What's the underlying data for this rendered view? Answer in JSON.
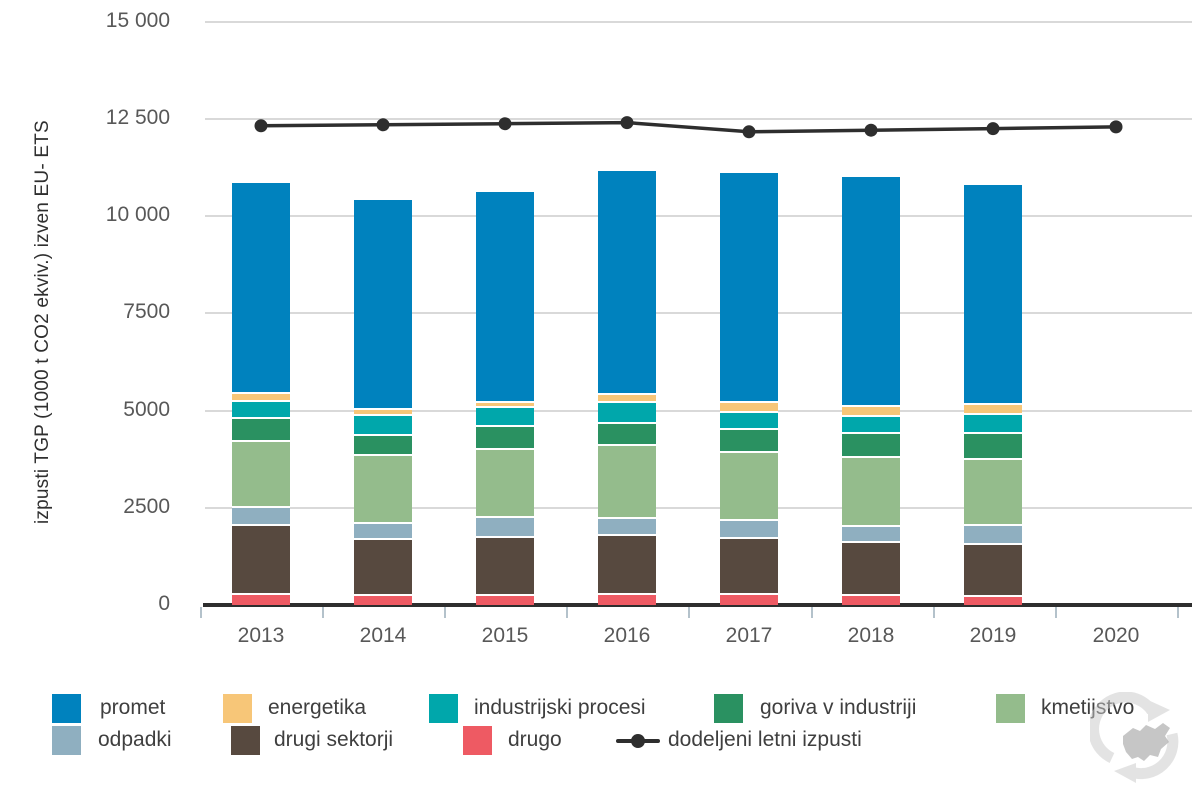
{
  "chart_data": {
    "type": "bar",
    "subtype": "stacked-bars-with-line-overlay",
    "title": "",
    "ylabel": "izpusti TGP (1000 t CO2 ekviv.) izven EU- ETS",
    "xlabel": "",
    "ylim": [
      0,
      15000
    ],
    "grid": "horizontal",
    "ytick_values": [
      15000,
      12500,
      10000,
      7500,
      5000,
      2500,
      0
    ],
    "ytick_labels": [
      "15 000",
      "12 500",
      "10 000",
      "7500",
      "5000",
      "2500",
      "0"
    ],
    "categories": [
      "2013",
      "2014",
      "2015",
      "2016",
      "2017",
      "2018",
      "2019",
      "2020"
    ],
    "stack_note": "series listed bottom-to-top as stacked; 2020 has no bar, only the line point",
    "series": [
      {
        "name": "drugo",
        "color": "#ee5a63",
        "values": [
          315,
          295,
          280,
          320,
          320,
          295,
          255,
          null
        ]
      },
      {
        "name": "drugi sektorji",
        "color": "#57493f",
        "values": [
          1770,
          1420,
          1505,
          1505,
          1440,
          1345,
          1350,
          null
        ]
      },
      {
        "name": "odpadki",
        "color": "#8fafc0",
        "values": [
          455,
          430,
          495,
          430,
          455,
          425,
          480,
          null
        ]
      },
      {
        "name": "kmetijstvo",
        "color": "#94bc8c",
        "values": [
          1700,
          1740,
          1765,
          1875,
          1750,
          1755,
          1690,
          null
        ]
      },
      {
        "name": "goriva v industriji",
        "color": "#2a9161",
        "values": [
          585,
          510,
          595,
          580,
          575,
          640,
          665,
          null
        ]
      },
      {
        "name": "industrijski procesi",
        "color": "#00a7ab",
        "values": [
          445,
          525,
          485,
          535,
          440,
          425,
          495,
          null
        ]
      },
      {
        "name": "energetika",
        "color": "#f7c678",
        "values": [
          205,
          135,
          130,
          200,
          270,
          255,
          260,
          null
        ]
      },
      {
        "name": "promet",
        "color": "#0082be",
        "values": [
          5390,
          5370,
          5380,
          5715,
          5850,
          5860,
          5600,
          null
        ]
      }
    ],
    "line_series": {
      "name": "dodeljeni letni izpusti",
      "color": "#2e2e2e",
      "values": [
        12324,
        12352,
        12380,
        12408,
        12171,
        12213,
        12254,
        12296
      ]
    },
    "legend_position": "bottom",
    "legend": [
      {
        "label": "promet",
        "color": "#0082be",
        "marker": "square"
      },
      {
        "label": "energetika",
        "color": "#f7c678",
        "marker": "square"
      },
      {
        "label": "industrijski procesi",
        "color": "#00a7ab",
        "marker": "square"
      },
      {
        "label": "goriva v industriji",
        "color": "#2a9161",
        "marker": "square"
      },
      {
        "label": "kmetijstvo",
        "color": "#94bc8c",
        "marker": "square"
      },
      {
        "label": "odpadki",
        "color": "#8fafc0",
        "marker": "square"
      },
      {
        "label": "drugi sektorji",
        "color": "#57493f",
        "marker": "square"
      },
      {
        "label": "drugo",
        "color": "#ee5a63",
        "marker": "square"
      },
      {
        "label": "dodeljeni letni izpusti",
        "color": "#2e2e2e",
        "marker": "line"
      }
    ],
    "colors": {
      "gridline": "#d9d9d9",
      "axis_line": "#2e2e2e",
      "tick_mark": "#b4c2cb",
      "tick_text": "#585858",
      "legend_text": "#3f3f3f",
      "watermark": "#c9c9c9"
    }
  }
}
